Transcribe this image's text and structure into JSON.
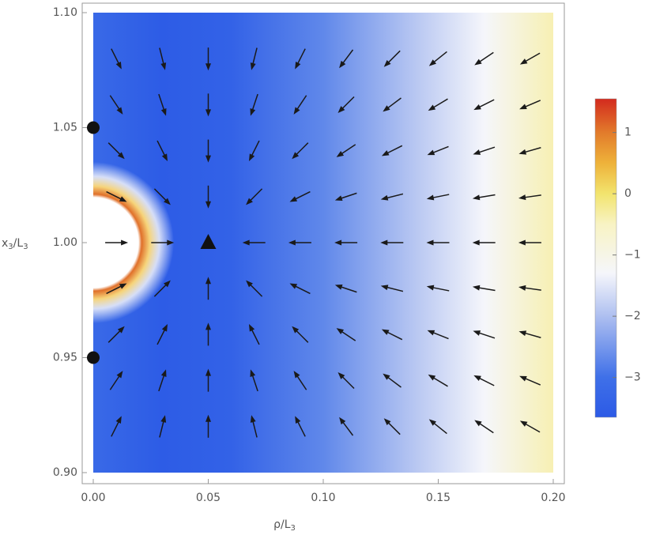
{
  "chart_data": {
    "type": "vector_field",
    "xlabel": [
      {
        "text": "ρ/L"
      },
      {
        "text": "3",
        "sub": true
      }
    ],
    "ylabel": [
      {
        "text": "x"
      },
      {
        "text": "3",
        "sub": true
      },
      {
        "text": "/L"
      },
      {
        "text": "3",
        "sub": true
      }
    ],
    "xlim": [
      0,
      0.2
    ],
    "ylim": [
      0.9,
      1.1
    ],
    "xticks": [
      {
        "value": 0,
        "label": "0.00"
      },
      {
        "value": 0.05,
        "label": "0.05"
      },
      {
        "value": 0.1,
        "label": "0.10"
      },
      {
        "value": 0.15,
        "label": "0.15"
      },
      {
        "value": 0.2,
        "label": "0.20"
      }
    ],
    "yticks": [
      {
        "value": 0.9,
        "label": "0.90"
      },
      {
        "value": 0.95,
        "label": "0.95"
      },
      {
        "value": 1.0,
        "label": "1.00"
      },
      {
        "value": 1.05,
        "label": "1.05"
      },
      {
        "value": 1.1,
        "label": "1.10"
      }
    ],
    "arrow_x": [
      0.01,
      0.03,
      0.05,
      0.07,
      0.09,
      0.11,
      0.13,
      0.15,
      0.17,
      0.19
    ],
    "arrow_y": [
      1.08,
      1.06,
      1.04,
      1.02,
      1.0,
      0.98,
      0.96,
      0.94,
      0.92
    ],
    "arrow_angles": [
      [
        -63.4,
        -76.0,
        -90,
        -104.0,
        -116.6,
        -126.9,
        -135,
        -141.3,
        -146.3,
        -150.3
      ],
      [
        -56.3,
        -71.6,
        -90,
        -108.4,
        -123.7,
        -135,
        -143.1,
        -149.0,
        -153.4,
        -156.8
      ],
      [
        -45,
        -63.4,
        -90,
        -116.6,
        -135,
        -146.3,
        -153.4,
        -158.2,
        -161.6,
        -164.1
      ],
      [
        -26.6,
        -45,
        -90,
        -135,
        -153.4,
        -161.6,
        -166.0,
        -168.7,
        -170.5,
        -171.9
      ],
      [
        0,
        0,
        null,
        180,
        180,
        180,
        180,
        180,
        180,
        180
      ],
      [
        26.6,
        45,
        90,
        135,
        153.4,
        161.6,
        166.0,
        168.7,
        170.5,
        171.9
      ],
      [
        45,
        63.4,
        90,
        116.6,
        135,
        146.3,
        153.4,
        158.2,
        161.6,
        164.1
      ],
      [
        56.3,
        71.6,
        90,
        108.4,
        123.7,
        135,
        143.1,
        149.0,
        153.4,
        156.8
      ],
      [
        63.4,
        76.0,
        90,
        104.0,
        116.6,
        126.9,
        135,
        141.3,
        146.3,
        150.3
      ]
    ],
    "arrow_color": "#1a1a1a",
    "density": {
      "x": [
        0,
        0.03,
        0.06,
        0.1,
        0.14,
        0.17,
        0.2
      ],
      "values": [
        -3.2,
        -3.6,
        -3.4,
        -2.7,
        -1.9,
        -1.3,
        -0.4
      ]
    },
    "hole": {
      "center": [
        0,
        1.0
      ],
      "radius": 0.02
    },
    "circles": [
      [
        0,
        1.05
      ],
      [
        0,
        0.95
      ]
    ],
    "triangle": [
      0.05,
      1.0
    ],
    "clim": [
      -3.65,
      1.55
    ],
    "cticks": [
      {
        "value": 1,
        "label": "1"
      },
      0,
      {
        "value": -1,
        "label": "−1"
      },
      {
        "value": -2,
        "label": "−2"
      },
      {
        "value": -3,
        "label": "−3"
      }
    ],
    "colormap": [
      {
        "value": -3.65,
        "color": "#2c5ae6"
      },
      {
        "value": -3,
        "color": "#3f70e8"
      },
      {
        "value": -2,
        "color": "#aebff0"
      },
      {
        "value": -1.3,
        "color": "#f5f6fb"
      },
      {
        "value": -0.5,
        "color": "#f8f3c4"
      },
      {
        "value": 0,
        "color": "#f2e46e"
      },
      {
        "value": 0.5,
        "color": "#eeb23a"
      },
      {
        "value": 1,
        "color": "#e27b2b"
      },
      {
        "value": 1.55,
        "color": "#d32a1e"
      }
    ]
  }
}
